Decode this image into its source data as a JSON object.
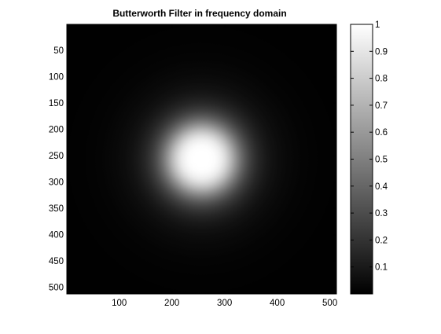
{
  "chart_data": {
    "type": "heatmap",
    "title": "Butterworth Filter in frequency domain",
    "xlabel": "",
    "ylabel": "",
    "xlim": [
      0.5,
      512.5
    ],
    "ylim": [
      0.5,
      512.5
    ],
    "x_ticks": [
      100,
      200,
      300,
      400,
      500
    ],
    "y_ticks": [
      50,
      100,
      150,
      200,
      250,
      300,
      350,
      400,
      450,
      500
    ],
    "colormap": "gray",
    "clim": [
      0,
      1
    ],
    "colorbar_ticks": [
      0.1,
      0.2,
      0.3,
      0.4,
      0.5,
      0.6,
      0.7,
      0.8,
      0.9,
      1
    ],
    "filter": {
      "kind": "Butterworth lowpass",
      "center": [
        256,
        256
      ],
      "cutoff_radius": 70,
      "order": 2
    },
    "grid": false,
    "colorbar_position": "right"
  }
}
